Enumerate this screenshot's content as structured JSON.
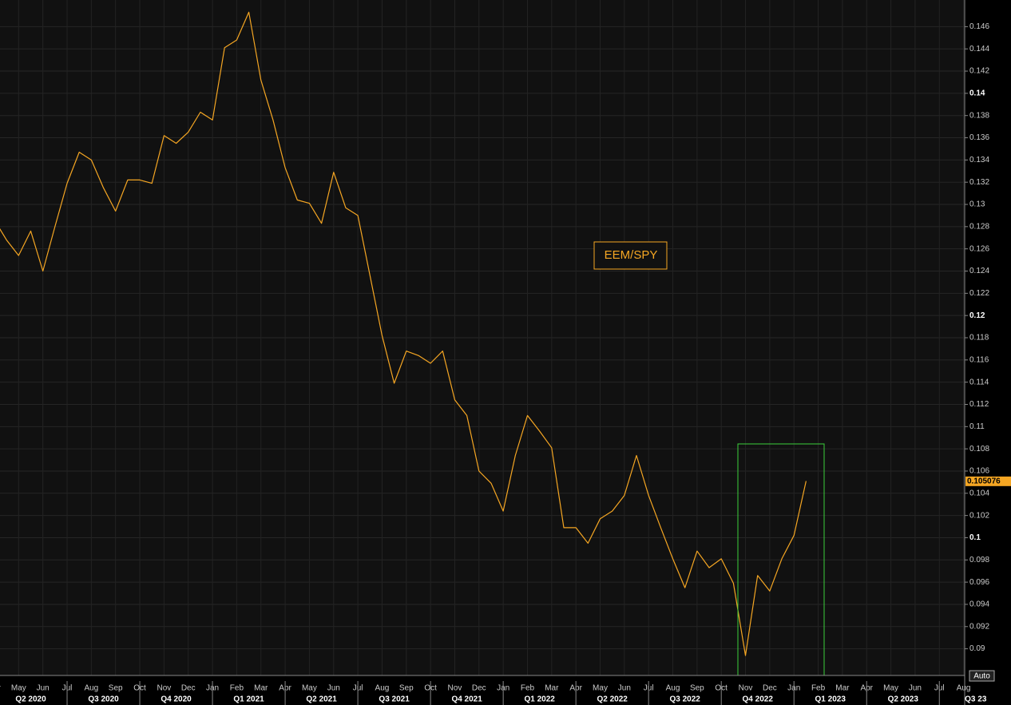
{
  "chart_data": {
    "type": "line",
    "annotation": "EEM/SPY",
    "last_value": 0.105076,
    "button": "Auto",
    "categories": [
      "Apr",
      null,
      "May",
      null,
      "Jun",
      null,
      "Jul",
      null,
      "Aug",
      null,
      "Sep",
      null,
      "Oct",
      null,
      "Nov",
      null,
      "Dec",
      null,
      "Jan",
      null,
      "Feb",
      null,
      "Mar",
      null,
      "Apr",
      null,
      "May",
      null,
      "Jun",
      null,
      "Jul",
      null,
      "Aug",
      null,
      "Sep",
      null,
      "Oct",
      null,
      "Nov",
      null,
      "Dec",
      null,
      "Jan",
      null,
      "Feb",
      null,
      "Mar",
      null,
      "Apr",
      null,
      "May",
      null,
      "Jun",
      null,
      "Jul",
      null,
      "Aug",
      null,
      "Sep",
      null,
      "Oct",
      null,
      "Nov",
      null,
      "Dec",
      null,
      "Jan",
      null,
      "Feb",
      null,
      "Mar",
      null,
      "Apr",
      null,
      "May",
      null,
      "Jun",
      null,
      "Jul",
      null,
      "Aug",
      null
    ],
    "quarters": [
      "Q2 2020",
      "Q3 2020",
      "Q4 2020",
      "Q1 2021",
      "Q2 2021",
      "Q3 2021",
      "Q4 2021",
      "Q1 2022",
      "Q2 2022",
      "Q3 2022",
      "Q4 2022",
      "Q1 2023",
      "Q2 2023",
      "Q3 23"
    ],
    "series": [
      {
        "name": "EEM/SPY",
        "color": "#f5a623",
        "values": [
          0.1286,
          0.1268,
          0.1254,
          0.1276,
          0.124,
          0.128,
          0.1319,
          0.1347,
          0.134,
          0.1315,
          0.1294,
          0.1322,
          0.1322,
          0.1319,
          0.1362,
          0.1355,
          0.1365,
          0.1383,
          0.1376,
          0.1441,
          0.1448,
          0.1473,
          0.1412,
          0.1376,
          0.1333,
          0.1304,
          0.1301,
          0.1283,
          0.1329,
          0.1297,
          0.129,
          0.1236,
          0.1182,
          0.1139,
          0.1168,
          0.1164,
          0.1157,
          0.1168,
          0.1124,
          0.111,
          0.106,
          0.1049,
          0.1024,
          0.1074,
          0.111,
          0.1096,
          0.1081,
          0.1009,
          0.1009,
          0.0995,
          0.1017,
          0.1024,
          0.1038,
          0.1074,
          0.1038,
          0.1009,
          0.0981,
          0.0955,
          0.0988,
          0.0973,
          0.0981,
          0.0959,
          0.0894,
          0.0966,
          0.0952,
          0.0981,
          0.1002,
          0.1051,
          null,
          null,
          null,
          null,
          null,
          null,
          null,
          null,
          null,
          null,
          null,
          null,
          null,
          null
        ]
      }
    ],
    "ylim": [
      0.0876,
      0.1484
    ],
    "yticks": [
      0.09,
      0.092,
      0.094,
      0.096,
      0.098,
      0.1,
      0.102,
      0.104,
      0.106,
      0.108,
      0.11,
      0.112,
      0.114,
      0.116,
      0.118,
      0.12,
      0.122,
      0.124,
      0.126,
      0.128,
      0.13,
      0.132,
      0.134,
      0.136,
      0.138,
      0.14,
      0.142,
      0.144,
      0.146
    ],
    "grid": true
  }
}
